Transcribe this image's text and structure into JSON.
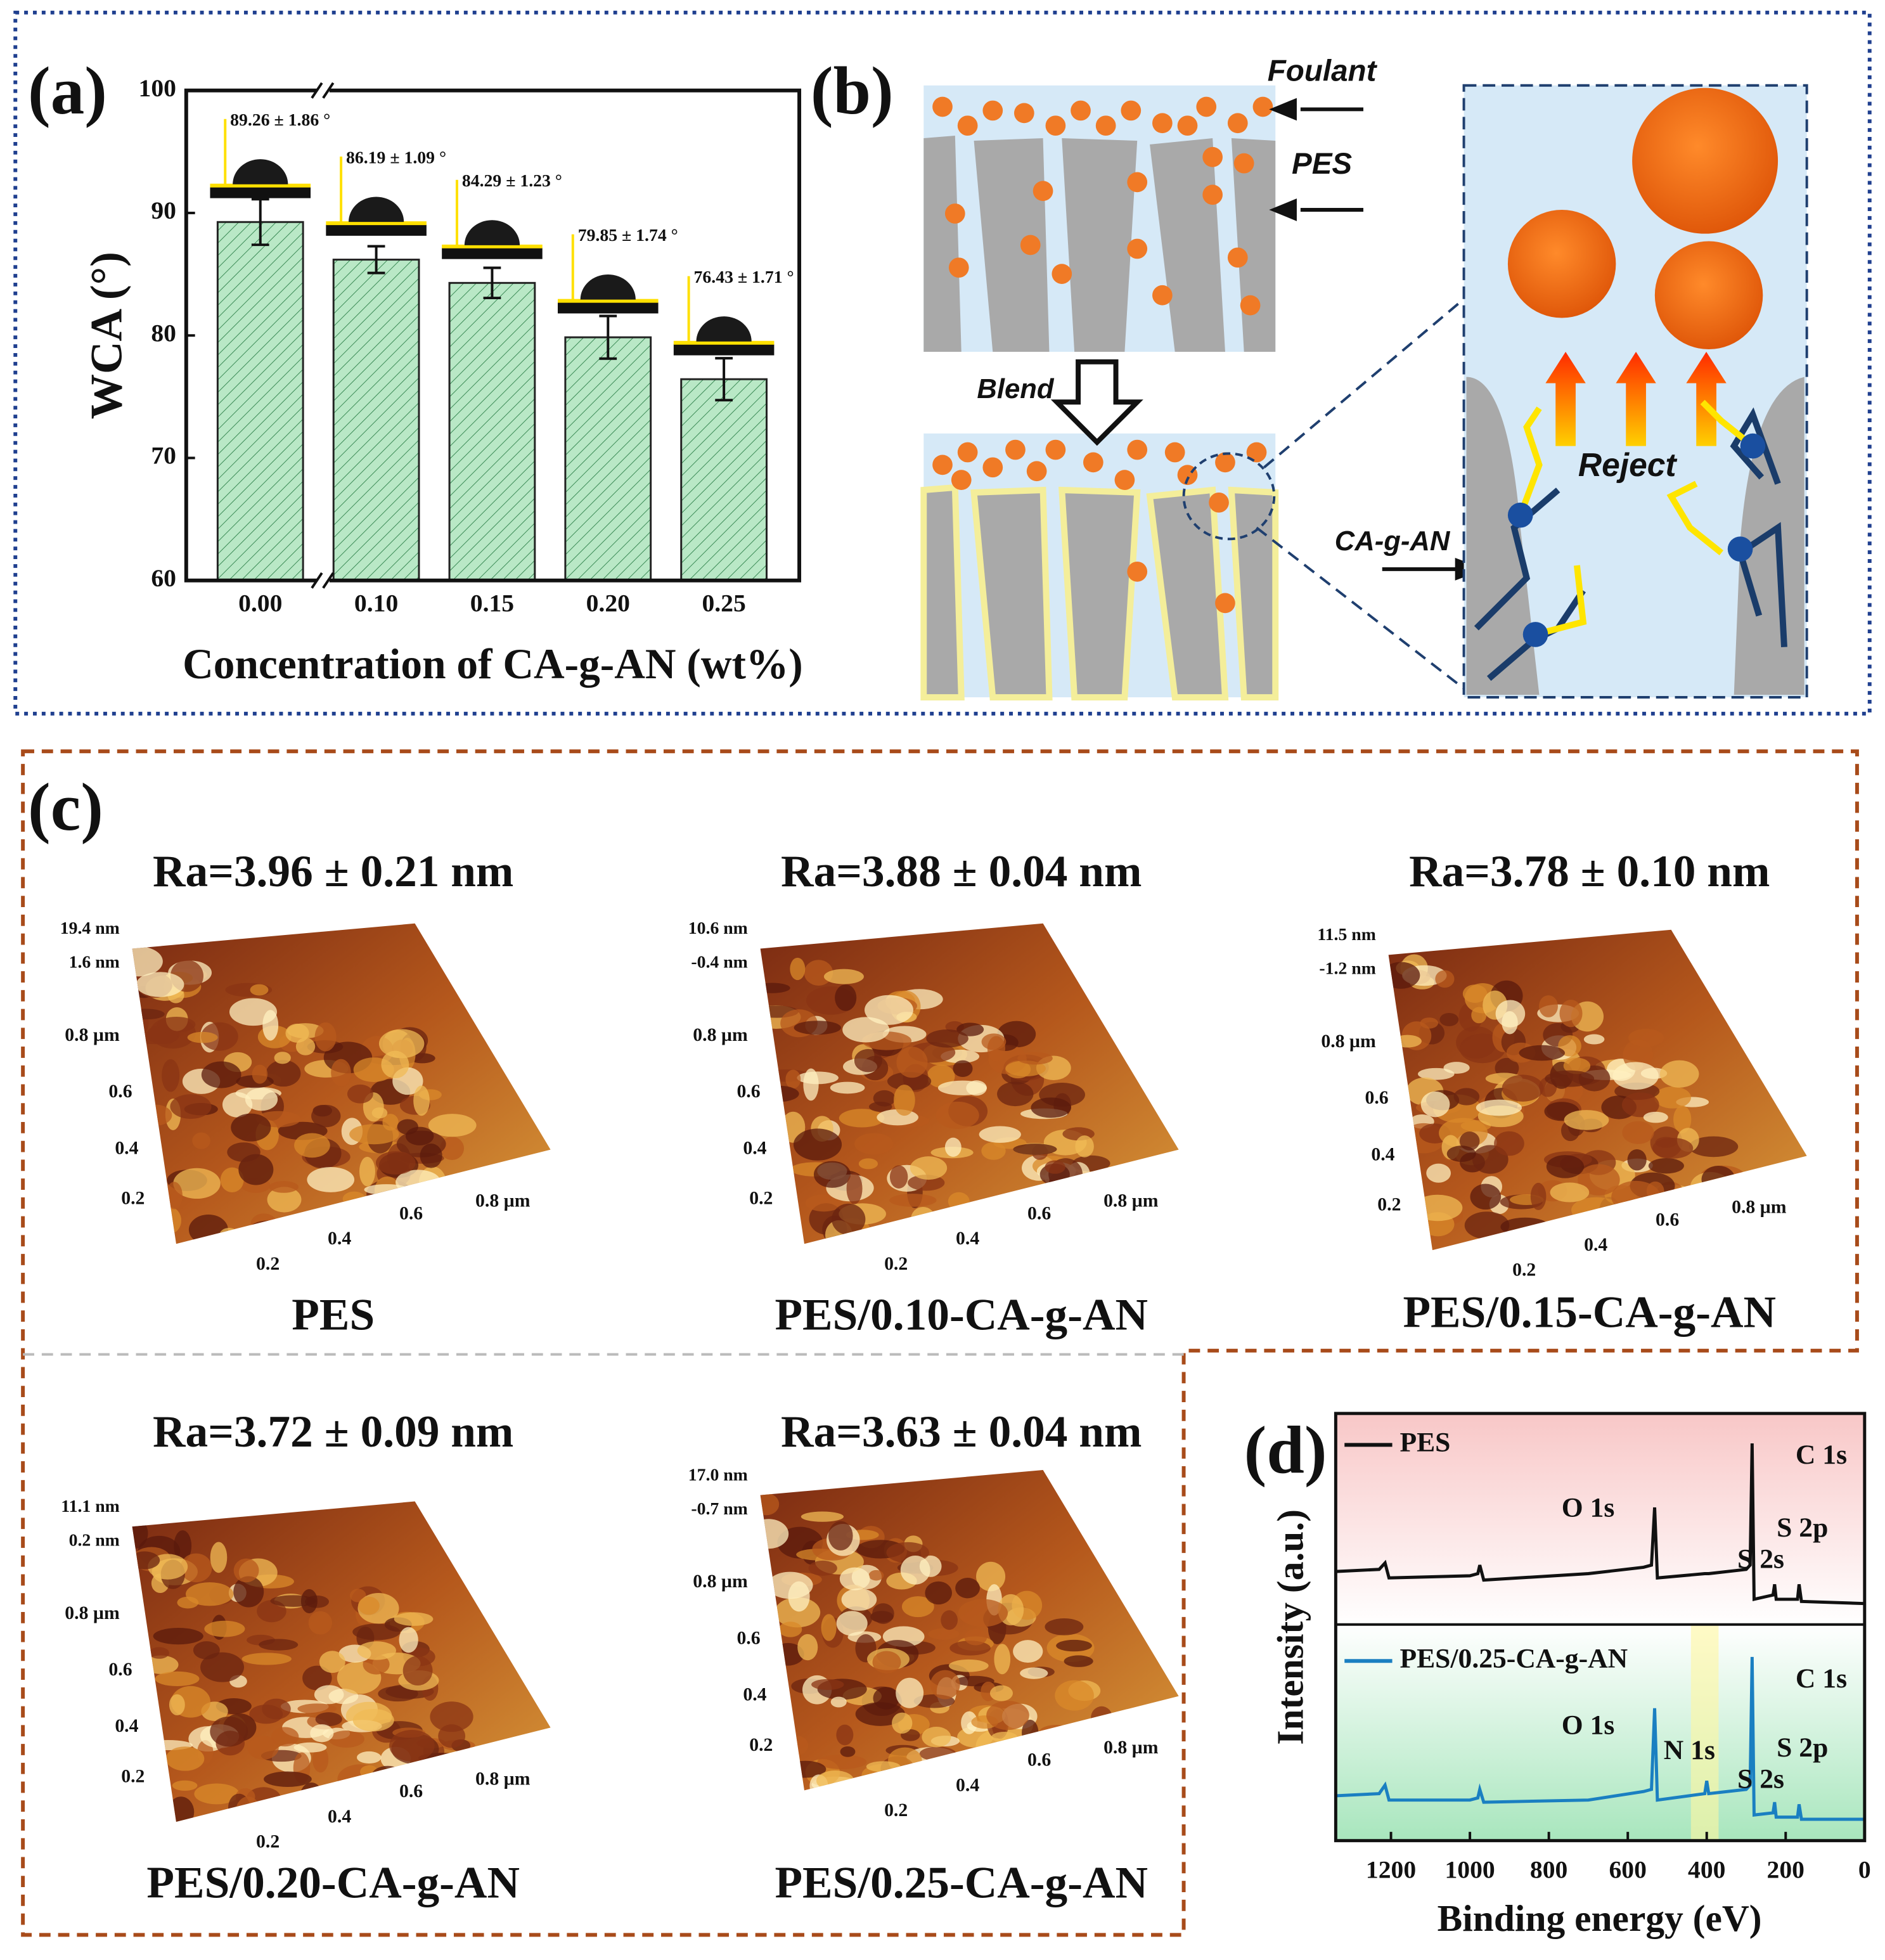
{
  "chart_data": [
    {
      "type": "bar",
      "panel": "(a)",
      "ylabel": "WCA (°)",
      "xlabel": "Concentration of CA-g-AN (wt%)",
      "categories": [
        "0.00",
        "0.10",
        "0.15",
        "0.20",
        "0.25"
      ],
      "values": [
        89.26,
        86.19,
        84.29,
        79.85,
        76.43
      ],
      "errors": [
        1.86,
        1.09,
        1.23,
        1.74,
        1.71
      ],
      "value_labels": [
        "89.26 ± 1.86 °",
        "86.19 ± 1.09 °",
        "84.29 ± 1.23 °",
        "79.85 ± 1.74 °",
        "76.43 ± 1.71 °"
      ],
      "color": "#b9e8c6",
      "ylim": [
        60,
        100
      ],
      "yticks": [
        60,
        70,
        80,
        90,
        100
      ]
    },
    {
      "type": "line",
      "panel": "(d)",
      "ylabel": "Intensity (a.u.)",
      "xlabel": "Binding energy (eV)",
      "x": [
        1340,
        1230,
        1215,
        1205,
        1000,
        980,
        975,
        965,
        700,
        560,
        540,
        532,
        525,
        405,
        400,
        395,
        300,
        290,
        285,
        280,
        232,
        228,
        224,
        170,
        166,
        160,
        0
      ],
      "series": [
        {
          "name": "PES",
          "color": "#111111",
          "values": [
            63,
            63.5,
            65,
            61.5,
            62,
            62.5,
            64.5,
            61,
            62.5,
            64,
            64.5,
            78,
            61.5,
            62.5,
            62.5,
            62.5,
            63.5,
            64.5,
            93,
            56.5,
            57.5,
            60,
            56.5,
            56.5,
            60,
            56,
            55.5
          ]
        },
        {
          "name": "PES/0.25-CA-g-AN",
          "color": "#1a7fc1",
          "values": [
            10.5,
            11,
            13,
            9.5,
            9.5,
            10,
            12,
            9,
            9.5,
            11.5,
            12,
            31,
            9.5,
            11,
            14,
            11,
            12,
            13,
            43,
            6,
            6.5,
            9,
            5.5,
            5.5,
            8.5,
            5,
            5
          ]
        }
      ],
      "highlight_range": [
        440,
        370
      ],
      "annotations": [
        "O 1s",
        "C 1s",
        "S 2s",
        "S 2p",
        "O 1s",
        "N 1s",
        "C 1s",
        "S 2s",
        "S 2p"
      ],
      "xlim": [
        1340,
        0
      ],
      "xticks": [
        1200,
        1000,
        800,
        600,
        400,
        200,
        0
      ],
      "ylim": [
        0,
        100
      ]
    }
  ],
  "diagram": {
    "panel": "(b)",
    "labels": [
      "Foulant",
      "PES",
      "Blend",
      "Reject",
      "CA-g-AN"
    ]
  },
  "afm": {
    "panel": "(c)",
    "y_labels": [
      "0.8 µm",
      "0.6",
      "0.4",
      "0.2"
    ],
    "x_labels": [
      "0.2",
      "0.4",
      "0.6",
      "0.8 µm"
    ],
    "images": [
      {
        "ra": "Ra=3.96 ± 0.21 nm",
        "name": "PES",
        "zmax": "19.4 nm",
        "zmin": "1.6 nm"
      },
      {
        "ra": "Ra=3.88 ± 0.04 nm",
        "name": "PES/0.10-CA-g-AN",
        "zmax": "10.6 nm",
        "zmin": "-0.4 nm"
      },
      {
        "ra": "Ra=3.78 ± 0.10 nm",
        "name": "PES/0.15-CA-g-AN",
        "zmax": "11.5 nm",
        "zmin": "-1.2 nm"
      },
      {
        "ra": "Ra=3.72 ± 0.09 nm",
        "name": "PES/0.20-CA-g-AN",
        "zmax": "11.1 nm",
        "zmin": "0.2 nm"
      },
      {
        "ra": "Ra=3.63 ± 0.04 nm",
        "name": "PES/0.25-CA-g-AN",
        "zmax": "17.0 nm",
        "zmin": "-0.7 nm"
      }
    ]
  }
}
